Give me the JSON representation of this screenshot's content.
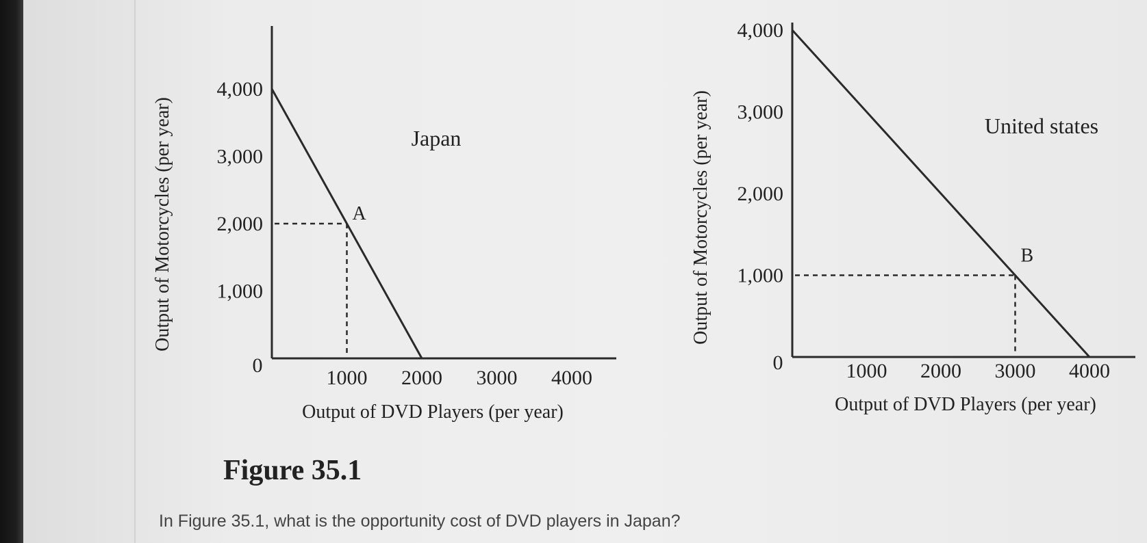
{
  "figure_caption": "Figure 35.1",
  "question": "In Figure 35.1, what is the opportunity cost of DVD players in Japan?",
  "colors": {
    "line": "#2a2a2a",
    "text": "#222222",
    "question_text": "#444444"
  },
  "chart_data": [
    {
      "type": "line",
      "title": "Japan",
      "xlabel": "Output of DVD Players (per year)",
      "ylabel": "Output of Motorcycles (per year)",
      "xlim": [
        0,
        4000
      ],
      "ylim": [
        0,
        4000
      ],
      "x_ticks": [
        {
          "value": 1000,
          "label": "1000"
        },
        {
          "value": 2000,
          "label": "2000"
        },
        {
          "value": 3000,
          "label": "3000"
        },
        {
          "value": 4000,
          "label": "4000"
        }
      ],
      "y_ticks": [
        {
          "value": 1000,
          "label": "1,000"
        },
        {
          "value": 2000,
          "label": "2,000"
        },
        {
          "value": 3000,
          "label": "3,000"
        },
        {
          "value": 4000,
          "label": "4,000"
        }
      ],
      "origin_label": "0",
      "series": [
        {
          "x": [
            0,
            2000
          ],
          "y": [
            4000,
            0
          ]
        }
      ],
      "points": [
        {
          "label": "A",
          "x": 1000,
          "y": 2000
        }
      ],
      "grid": false
    },
    {
      "type": "line",
      "title": "United states",
      "xlabel": "Output of DVD Players (per year)",
      "ylabel": "Output of Motorcycles (per year)",
      "xlim": [
        0,
        4000
      ],
      "ylim": [
        0,
        4000
      ],
      "x_ticks": [
        {
          "value": 1000,
          "label": "1000"
        },
        {
          "value": 2000,
          "label": "2000"
        },
        {
          "value": 3000,
          "label": "3000"
        },
        {
          "value": 4000,
          "label": "4000"
        }
      ],
      "y_ticks": [
        {
          "value": 1000,
          "label": "1,000"
        },
        {
          "value": 2000,
          "label": "2,000"
        },
        {
          "value": 3000,
          "label": "3,000"
        },
        {
          "value": 4000,
          "label": "4,000"
        }
      ],
      "origin_label": "0",
      "series": [
        {
          "x": [
            0,
            4000
          ],
          "y": [
            4000,
            0
          ]
        }
      ],
      "points": [
        {
          "label": "B",
          "x": 3000,
          "y": 1000
        }
      ],
      "grid": false
    }
  ]
}
